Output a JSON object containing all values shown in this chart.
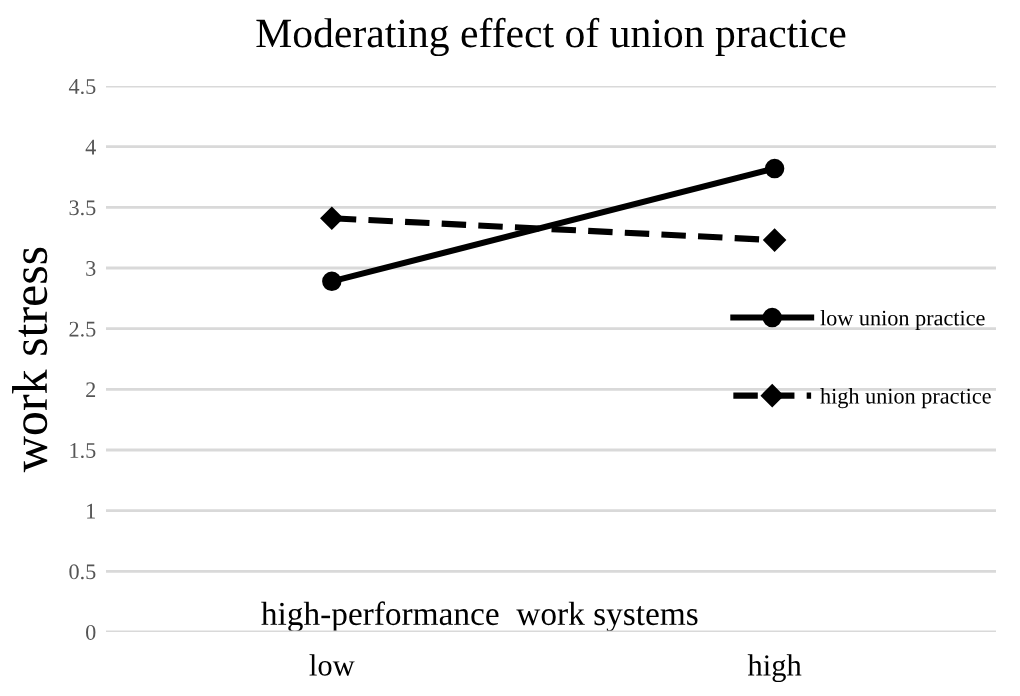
{
  "chart_data": {
    "type": "line",
    "title": "Moderating effect of union practice",
    "xlabel": "high-performance  work systems",
    "ylabel": "work stress",
    "categories": [
      "low",
      "high"
    ],
    "series": [
      {
        "name": "low union practice",
        "color": "#000000",
        "values": [
          2.89,
          3.82
        ],
        "marker": "circle",
        "line_style": "solid"
      },
      {
        "name": "high union practice",
        "color": "#000000",
        "values": [
          3.41,
          3.23
        ],
        "marker": "diamond",
        "line_style": "dashed"
      }
    ],
    "ylim": [
      0,
      4.5
    ],
    "yticks": [
      0,
      0.5,
      1,
      1.5,
      2,
      2.5,
      3,
      3.5,
      4,
      4.5
    ],
    "grid": "y",
    "legend": "right"
  }
}
